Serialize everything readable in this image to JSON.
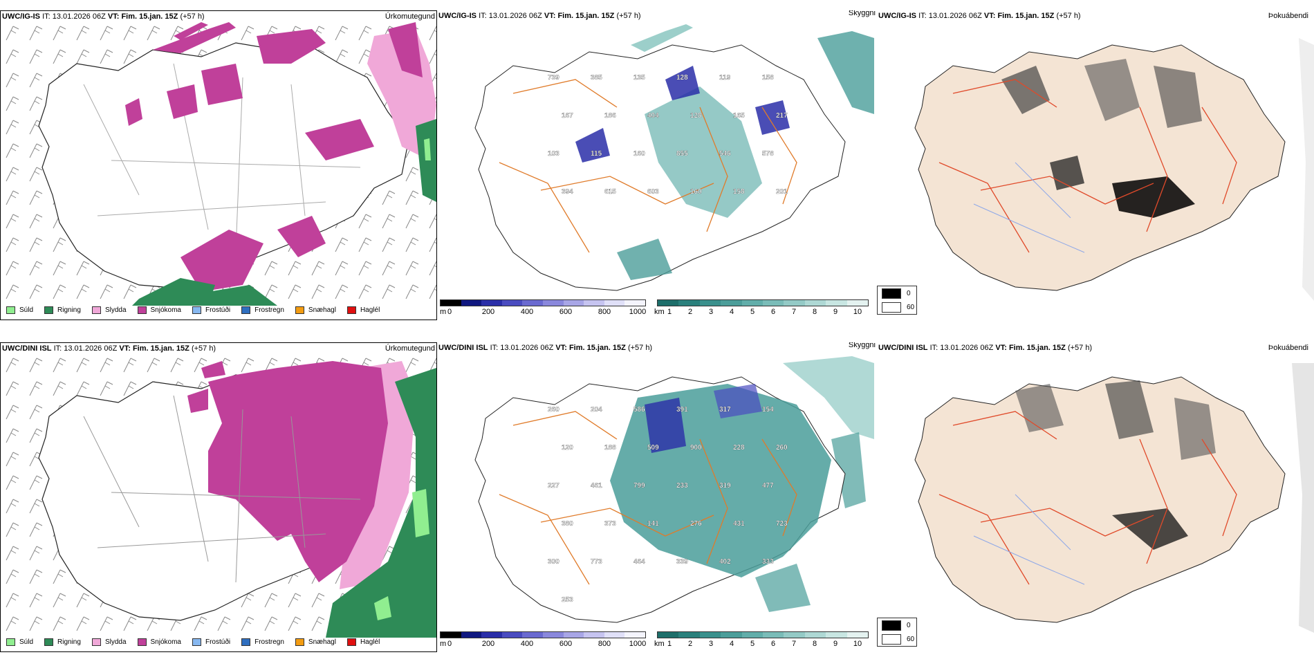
{
  "rows": [
    {
      "model": "UWC/IG-IS",
      "it_label": "IT:",
      "it": "13.01.2026 06Z",
      "vt_label": "VT:",
      "vt": "Fim. 15.jan. 15Z",
      "lead": "(+57 h)",
      "titles": {
        "precip": "Úrkomutegund",
        "vis": "Skyggni",
        "fog": "Þokuábendi"
      },
      "snow_labels": [
        "739",
        "385",
        "135",
        "128",
        "119",
        "158",
        "167",
        "186",
        "404",
        "128",
        "165",
        "217",
        "103",
        "115",
        "160",
        "855",
        "546",
        "578",
        "394",
        "615",
        "603",
        "160",
        "158",
        "201"
      ]
    },
    {
      "model": "UWC/DINI ISL",
      "it_label": "IT:",
      "it": "13.01.2026 06Z",
      "vt_label": "VT:",
      "vt": "Fim. 15.jan. 15Z",
      "lead": "(+57 h)",
      "titles": {
        "precip": "Úrkomutegund",
        "vis": "Skyggni",
        "fog": "Þokuábendi"
      },
      "snow_labels": [
        "260",
        "204",
        "586",
        "391",
        "317",
        "154",
        "120",
        "188",
        "509",
        "900",
        "228",
        "260",
        "227",
        "461",
        "799",
        "233",
        "319",
        "477",
        "380",
        "373",
        "141",
        "276",
        "431",
        "723",
        "300",
        "773",
        "464",
        "339",
        "402",
        "333",
        "253"
      ]
    }
  ],
  "precip_legend": [
    {
      "label": "Súld",
      "color": "#90ee90"
    },
    {
      "label": "Rigning",
      "color": "#2e8b57"
    },
    {
      "label": "Slydda",
      "color": "#f0a8d8"
    },
    {
      "label": "Snjókoma",
      "color": "#c0409a"
    },
    {
      "label": "Frostúði",
      "color": "#87b8f0"
    },
    {
      "label": "Frostregn",
      "color": "#2f6fc0"
    },
    {
      "label": "Snæhagl",
      "color": "#f39c12"
    },
    {
      "label": "Haglél",
      "color": "#e01010"
    }
  ],
  "snow_bar": {
    "unit": "m",
    "ticks": [
      "0",
      "200",
      "400",
      "600",
      "800",
      "1000"
    ],
    "colors": [
      "#000000",
      "#101880",
      "#2a2ea8",
      "#4a4cc0",
      "#6a6ad0",
      "#8a88dc",
      "#a8a6e6",
      "#c6c4f0",
      "#e0e0f8",
      "#f4f4fc"
    ]
  },
  "vis_bar": {
    "unit": "km",
    "ticks": [
      "1",
      "2",
      "3",
      "4",
      "5",
      "6",
      "7",
      "8",
      "9",
      "10"
    ],
    "colors": [
      "#1d6e6a",
      "#2a807c",
      "#3a908c",
      "#4c9e9a",
      "#62aeaa",
      "#7abcb8",
      "#94cac6",
      "#aed8d4",
      "#c8e6e2",
      "#e4f2f0"
    ]
  },
  "fog_legend": {
    "items": [
      {
        "label": "0",
        "color": "#000000"
      },
      {
        "label": "60",
        "color": "#ffffff"
      }
    ]
  },
  "colors": {
    "land_precip": "#ffffff",
    "land_fog": "#f4e4d4",
    "roads": "#e07b2a",
    "rivers": "#8ea8e8",
    "sea_vis": "#4a9e9a"
  }
}
